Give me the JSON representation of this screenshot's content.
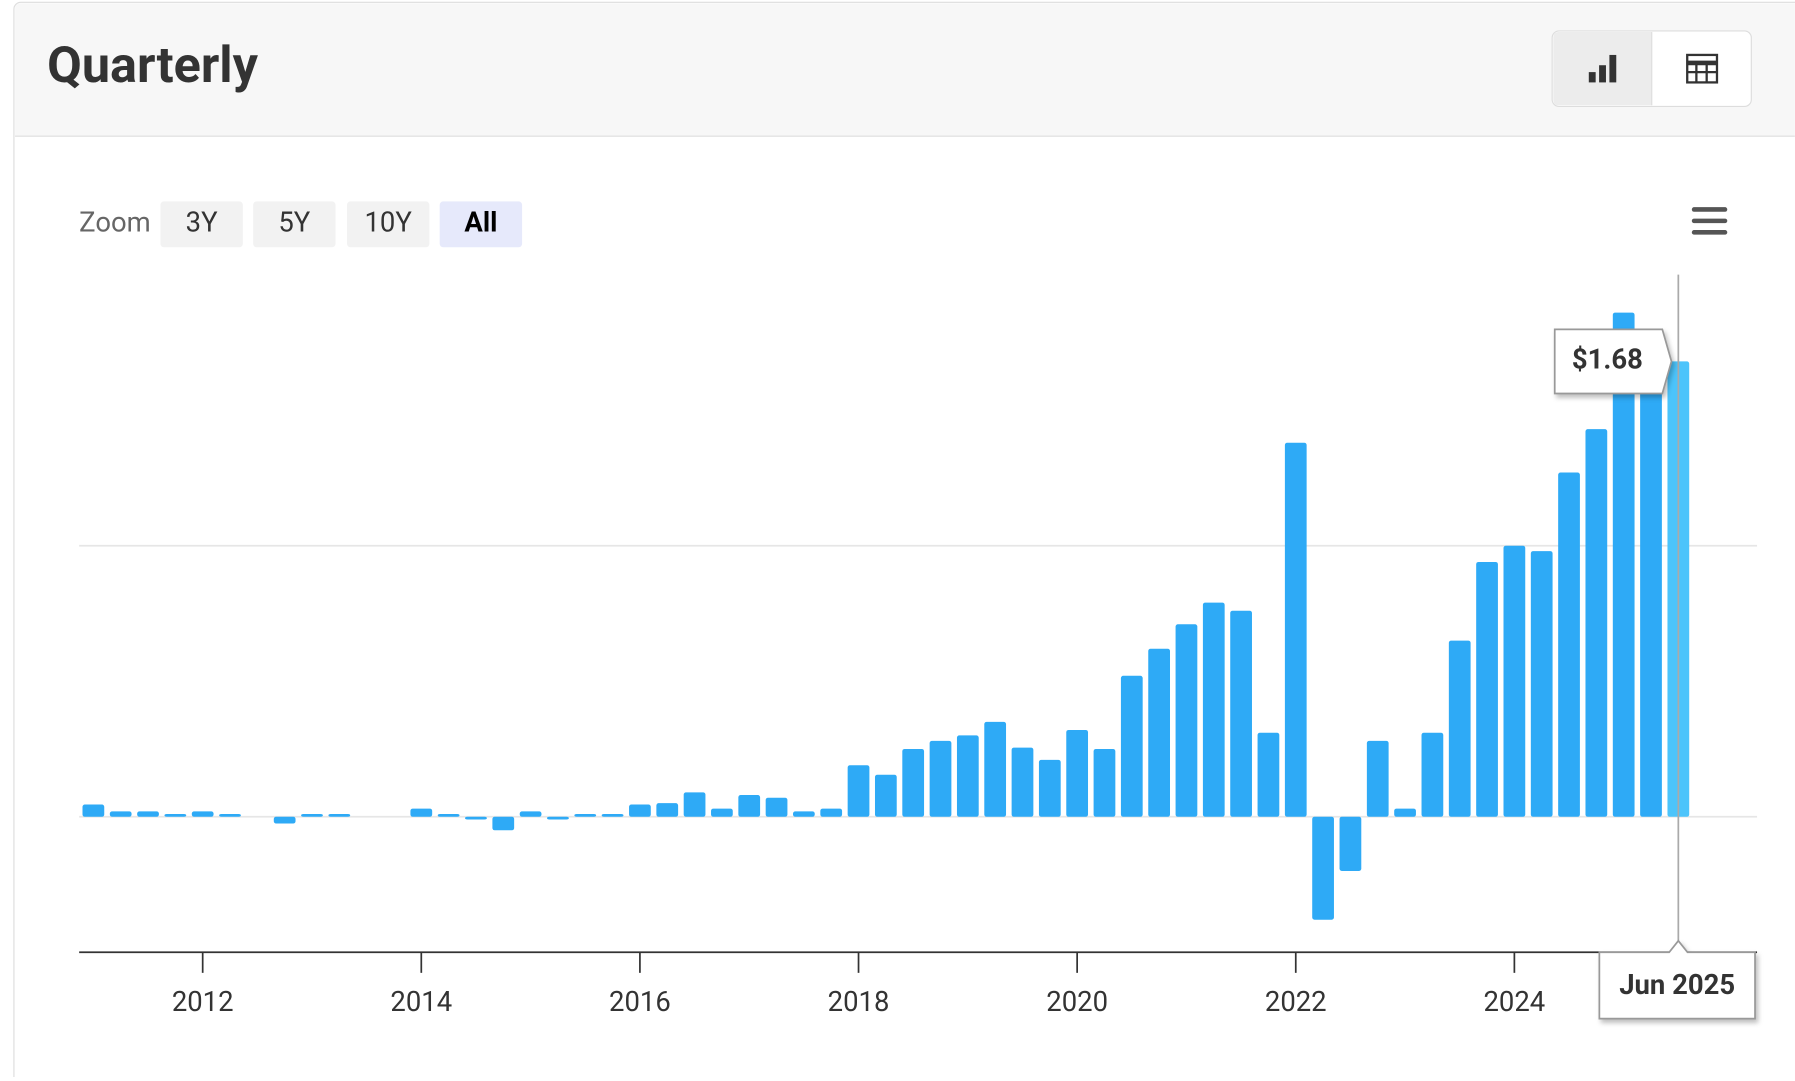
{
  "header": {
    "title": "Quarterly"
  },
  "zoom": {
    "label": "Zoom",
    "options": [
      "3Y",
      "5Y",
      "10Y",
      "All"
    ],
    "selected": "All"
  },
  "chart_data": {
    "type": "bar",
    "x": [
      "Dec 2010",
      "Mar 2011",
      "Jun 2011",
      "Sep 2011",
      "Dec 2011",
      "Mar 2012",
      "Jun 2012",
      "Sep 2012",
      "Dec 2012",
      "Mar 2013",
      "Jun 2013",
      "Sep 2013",
      "Dec 2013",
      "Mar 2014",
      "Jun 2014",
      "Sep 2014",
      "Dec 2014",
      "Mar 2015",
      "Jun 2015",
      "Sep 2015",
      "Dec 2015",
      "Mar 2016",
      "Jun 2016",
      "Sep 2016",
      "Dec 2016",
      "Mar 2017",
      "Jun 2017",
      "Sep 2017",
      "Dec 2017",
      "Mar 2018",
      "Jun 2018",
      "Sep 2018",
      "Dec 2018",
      "Mar 2019",
      "Jun 2019",
      "Sep 2019",
      "Dec 2019",
      "Mar 2020",
      "Jun 2020",
      "Sep 2020",
      "Dec 2020",
      "Mar 2021",
      "Jun 2021",
      "Sep 2021",
      "Dec 2021",
      "Mar 2022",
      "Jun 2022",
      "Sep 2022",
      "Dec 2022",
      "Mar 2023",
      "Jun 2023",
      "Sep 2023",
      "Dec 2023",
      "Mar 2024",
      "Jun 2024",
      "Sep 2024",
      "Dec 2024",
      "Mar 2025",
      "Jun 2025"
    ],
    "values": [
      0.045,
      0.02,
      0.02,
      0.01,
      0.02,
      0.01,
      0,
      -0.025,
      0.01,
      0.01,
      0,
      0,
      0.03,
      0.01,
      -0.01,
      -0.05,
      0.02,
      -0.01,
      0.01,
      0.01,
      0.045,
      0.05,
      0.09,
      0.03,
      0.08,
      0.07,
      0.02,
      0.03,
      0.19,
      0.155,
      0.25,
      0.28,
      0.3,
      0.35,
      0.255,
      0.21,
      0.32,
      0.25,
      0.52,
      0.62,
      0.71,
      0.79,
      0.76,
      0.31,
      1.38,
      -0.38,
      -0.2,
      0.28,
      0.03,
      0.31,
      0.65,
      0.94,
      1.0,
      0.98,
      1.27,
      1.43,
      1.86,
      1.62,
      1.68
    ],
    "value_labels": [
      null,
      null,
      null,
      null,
      null,
      null,
      null,
      null,
      null,
      null,
      null,
      null,
      null,
      null,
      null,
      null,
      null,
      null,
      null,
      null,
      null,
      null,
      null,
      null,
      null,
      null,
      null,
      null,
      null,
      null,
      null,
      null,
      null,
      null,
      null,
      null,
      null,
      null,
      null,
      null,
      null,
      null,
      null,
      null,
      null,
      null,
      null,
      null,
      null,
      null,
      null,
      null,
      null,
      null,
      null,
      null,
      null,
      null,
      "$1.68"
    ],
    "color": "#2eaaf6",
    "hover_color": "#4cc4fb",
    "xlim": [
      2010.87,
      2026.22
    ],
    "xticks": [
      2012,
      2014,
      2016,
      2018,
      2020,
      2022,
      2024
    ],
    "ylim": [
      -0.5,
      2
    ],
    "yticks": [
      0,
      1
    ],
    "grid": true
  }
}
